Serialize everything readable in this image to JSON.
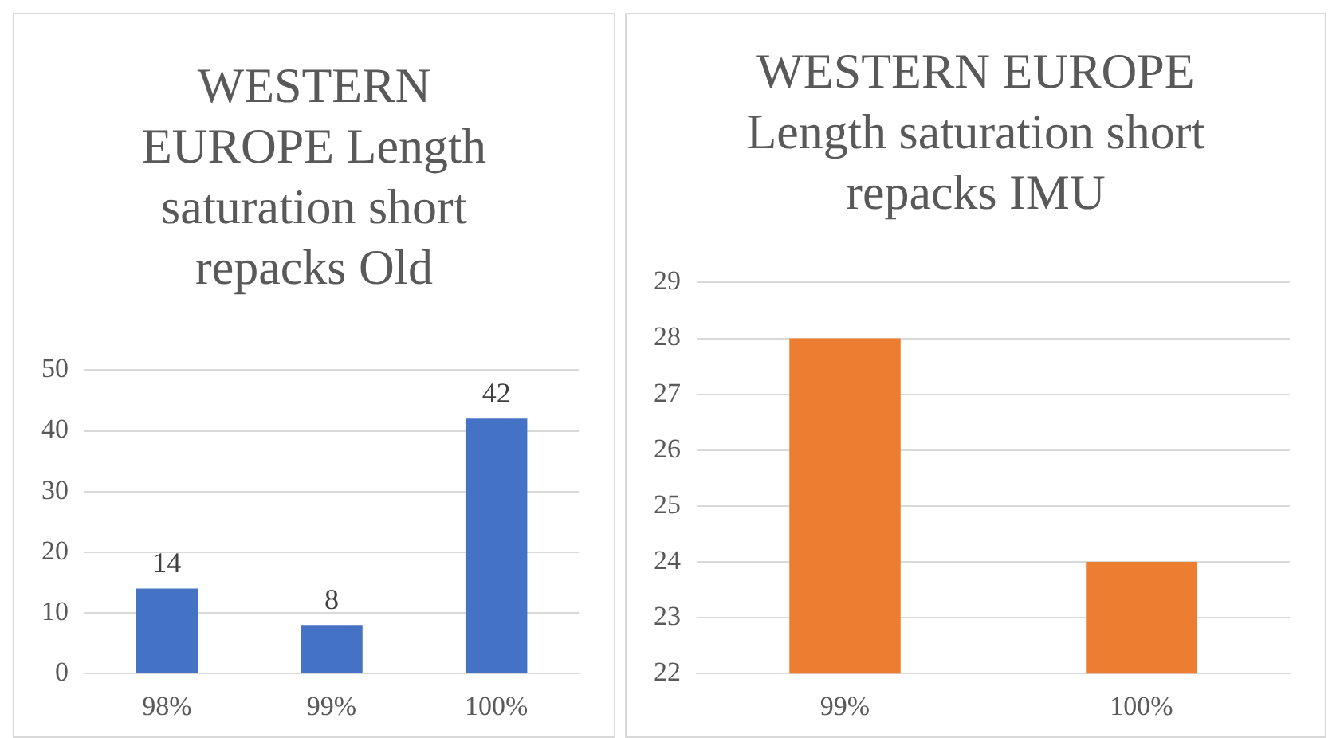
{
  "chart_data": [
    {
      "type": "bar",
      "title": "WESTERN EUROPE Length saturation short repacks Old",
      "categories": [
        "98%",
        "99%",
        "100%"
      ],
      "values": [
        14,
        8,
        42
      ],
      "color": "#4472c4",
      "ylim": [
        0,
        50
      ],
      "yticks": [
        0,
        10,
        20,
        30,
        40,
        50
      ],
      "grid": "y",
      "data_labels": true,
      "legend": false
    },
    {
      "type": "bar",
      "title": "WESTERN EUROPE Length saturation short repacks IMU",
      "categories": [
        "99%",
        "100%"
      ],
      "values": [
        28,
        24
      ],
      "color": "#ed7d31",
      "ylim": [
        22,
        29
      ],
      "yticks": [
        22,
        23,
        24,
        25,
        26,
        27,
        28,
        29
      ],
      "grid": "y",
      "legend": false
    }
  ]
}
